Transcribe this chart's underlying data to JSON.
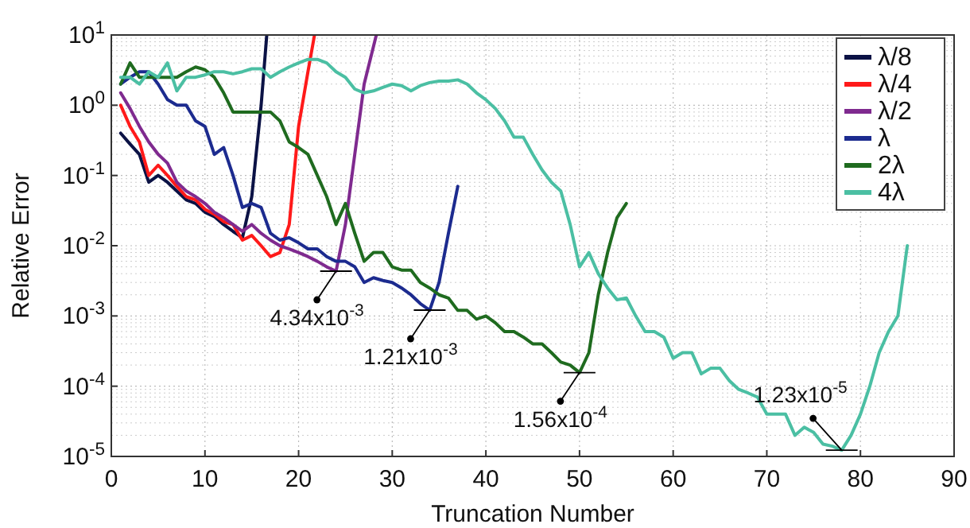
{
  "chart_data": {
    "type": "line",
    "xlabel": "Truncation Number",
    "ylabel": "Relative Error",
    "log": "y",
    "grid": true,
    "legend": "top right",
    "line_style": "solid",
    "marker": "none",
    "xlim": [
      0,
      90
    ],
    "xticks": [
      0,
      10,
      20,
      30,
      40,
      50,
      60,
      70,
      80,
      90
    ],
    "ylim": [
      1e-05,
      10
    ],
    "yticks": [
      {
        "value": 1e-05,
        "label": "10$^{-5}$"
      },
      {
        "value": 0.0001,
        "label": "10$^{-4}$"
      },
      {
        "value": 0.001,
        "label": "10$^{-3}$"
      },
      {
        "value": 0.01,
        "label": "10$^{-2}$"
      },
      {
        "value": 0.1,
        "label": "10$^{-1}$"
      },
      {
        "value": 1,
        "label": "10$^{0}$"
      },
      {
        "value": 10,
        "label": "10$^{1}$"
      }
    ],
    "series": [
      {
        "name": "λ/8",
        "color": "#0b1245",
        "x": [
          1,
          2,
          3,
          4,
          5,
          6,
          7,
          8,
          9,
          10,
          11,
          12,
          13,
          14,
          15,
          16,
          16.6
        ],
        "values": [
          0.4,
          0.28,
          0.2,
          0.08,
          0.1,
          0.08,
          0.06,
          0.045,
          0.04,
          0.03,
          0.026,
          0.02,
          0.016,
          0.013,
          0.05,
          1,
          10
        ]
      },
      {
        "name": "λ/4",
        "color": "#ff1a1a",
        "x": [
          1,
          2,
          3,
          4,
          5,
          6,
          7,
          8,
          9,
          10,
          11,
          12,
          13,
          14,
          15,
          16,
          17,
          18,
          19,
          20,
          21,
          21.7
        ],
        "values": [
          1,
          0.5,
          0.3,
          0.1,
          0.14,
          0.1,
          0.07,
          0.05,
          0.045,
          0.033,
          0.028,
          0.022,
          0.02,
          0.012,
          0.014,
          0.01,
          0.007,
          0.008,
          0.02,
          0.5,
          3,
          10
        ]
      },
      {
        "name": "λ/2",
        "color": "#7f2a8f",
        "x": [
          1,
          2,
          3,
          4,
          5,
          6,
          7,
          8,
          9,
          10,
          11,
          12,
          13,
          14,
          15,
          16,
          17,
          18,
          19,
          20,
          21,
          22,
          23,
          24,
          25,
          26,
          27,
          28.3
        ],
        "values": [
          1.5,
          0.9,
          0.5,
          0.3,
          0.2,
          0.15,
          0.08,
          0.06,
          0.05,
          0.04,
          0.03,
          0.025,
          0.02,
          0.016,
          0.02,
          0.015,
          0.012,
          0.01,
          0.009,
          0.008,
          0.007,
          0.006,
          0.005,
          0.00434,
          0.02,
          0.2,
          2,
          10
        ]
      },
      {
        "name": "λ",
        "color": "#1c2b8f",
        "x": [
          1,
          2,
          3,
          4,
          5,
          6,
          7,
          8,
          9,
          10,
          11,
          12,
          13,
          14,
          15,
          16,
          17,
          18,
          19,
          20,
          21,
          22,
          23,
          24,
          25,
          26,
          27,
          28,
          29,
          30,
          31,
          32,
          33,
          34,
          35,
          36,
          37
        ],
        "values": [
          2,
          2.5,
          3,
          3,
          2,
          1.2,
          1,
          1,
          0.6,
          0.5,
          0.2,
          0.25,
          0.1,
          0.035,
          0.04,
          0.035,
          0.015,
          0.012,
          0.013,
          0.011,
          0.009,
          0.009,
          0.007,
          0.006,
          0.006,
          0.005,
          0.003,
          0.0035,
          0.0032,
          0.003,
          0.0025,
          0.002,
          0.0015,
          0.00121,
          0.003,
          0.015,
          0.07
        ]
      },
      {
        "name": "2λ",
        "color": "#1f6b1f",
        "x": [
          1,
          2,
          3,
          4,
          5,
          6,
          7,
          8,
          9,
          10,
          11,
          12,
          13,
          14,
          15,
          16,
          17,
          18,
          19,
          20,
          21,
          22,
          23,
          24,
          25,
          26,
          27,
          28,
          29,
          30,
          31,
          32,
          33,
          34,
          35,
          36,
          37,
          38,
          39,
          40,
          41,
          42,
          43,
          44,
          45,
          46,
          47,
          48,
          49,
          50,
          51,
          52,
          53,
          54,
          55
        ],
        "values": [
          2,
          4,
          2.5,
          2.5,
          2.5,
          2.5,
          2.5,
          3,
          3.5,
          3.2,
          2.5,
          1.5,
          0.8,
          0.8,
          0.8,
          0.8,
          0.8,
          0.6,
          0.3,
          0.25,
          0.2,
          0.1,
          0.05,
          0.02,
          0.04,
          0.015,
          0.006,
          0.008,
          0.008,
          0.005,
          0.0045,
          0.0045,
          0.003,
          0.0025,
          0.002,
          0.0018,
          0.0012,
          0.0012,
          0.0009,
          0.001,
          0.0008,
          0.0006,
          0.0006,
          0.0005,
          0.0004,
          0.0004,
          0.0003,
          0.00022,
          0.0002,
          0.000156,
          0.0003,
          0.002,
          0.008,
          0.025,
          0.04
        ]
      },
      {
        "name": "4λ",
        "color": "#4bbfa3",
        "x": [
          1,
          2,
          3,
          4,
          5,
          6,
          7,
          8,
          9,
          10,
          11,
          12,
          13,
          14,
          15,
          16,
          17,
          18,
          19,
          20,
          21,
          22,
          23,
          24,
          25,
          26,
          27,
          28,
          29,
          30,
          31,
          32,
          33,
          34,
          35,
          36,
          37,
          38,
          39,
          40,
          41,
          42,
          43,
          44,
          45,
          46,
          47,
          48,
          49,
          50,
          51,
          52,
          53,
          54,
          55,
          56,
          57,
          58,
          59,
          60,
          61,
          62,
          63,
          64,
          65,
          66,
          67,
          68,
          69,
          70,
          71,
          72,
          73,
          74,
          75,
          76,
          77,
          78,
          79,
          80,
          81,
          82,
          83,
          84,
          85
        ],
        "values": [
          2.5,
          2.5,
          2,
          3,
          2.5,
          4,
          1.6,
          2.5,
          2.5,
          2.7,
          3,
          3,
          2.8,
          3,
          3.3,
          3.3,
          2.5,
          3,
          3.5,
          4,
          4.5,
          4.5,
          4,
          3,
          2.5,
          1.7,
          1.5,
          1.6,
          1.8,
          2,
          1.9,
          1.6,
          1.9,
          2.1,
          2.2,
          2.2,
          2.3,
          2,
          1.5,
          1.2,
          0.9,
          0.6,
          0.35,
          0.35,
          0.2,
          0.12,
          0.08,
          0.06,
          0.02,
          0.005,
          0.008,
          0.004,
          0.0025,
          0.0017,
          0.0018,
          0.001,
          0.0006,
          0.0006,
          0.0005,
          0.00025,
          0.0003,
          0.0003,
          0.00015,
          0.00018,
          0.00018,
          0.00012,
          9e-05,
          8e-05,
          7e-05,
          4e-05,
          4e-05,
          4e-05,
          2e-05,
          2.6e-05,
          2.2e-05,
          1.5e-05,
          1.4e-05,
          1.23e-05,
          2e-05,
          4e-05,
          0.0001,
          0.0003,
          0.0006,
          0.001,
          0.01
        ]
      }
    ],
    "annotations": [
      {
        "text": "4.34x10$^{-3}$",
        "x": 24,
        "y": 0.00434
      },
      {
        "text": "1.21x10$^{-3}$",
        "x": 34,
        "y": 0.00121
      },
      {
        "text": "1.56x10$^{-4}$",
        "x": 50,
        "y": 0.000156
      },
      {
        "text": "1.23x10$^{-5}$",
        "x": 78,
        "y": 1.23e-05
      }
    ]
  }
}
